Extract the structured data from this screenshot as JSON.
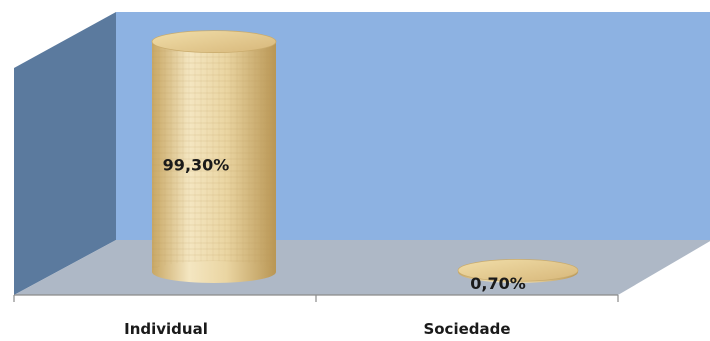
{
  "chart_data": {
    "type": "bar",
    "style": "3d-cylinder",
    "categories": [
      "Individual",
      "Sociedade"
    ],
    "values": [
      99.3,
      0.7
    ],
    "value_unit": "%",
    "data_labels": [
      "99,30%",
      "0,70%"
    ],
    "ylim": [
      0,
      100
    ],
    "grid": false,
    "legend": "none",
    "colors": {
      "back_wall": "#8db2e2",
      "side_wall": "#5b7a9e",
      "floor": "#aeb8c6",
      "bar": "#e7d3a4"
    }
  }
}
